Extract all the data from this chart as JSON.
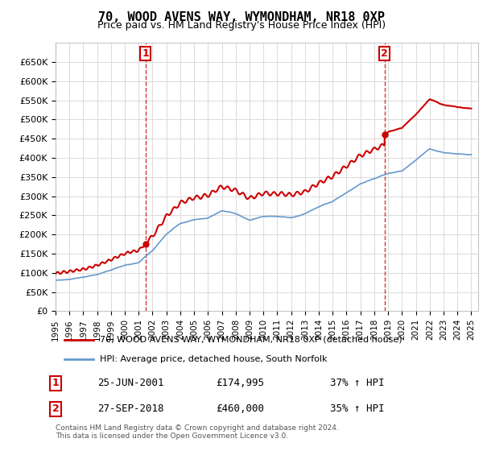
{
  "title": "70, WOOD AVENS WAY, WYMONDHAM, NR18 0XP",
  "subtitle": "Price paid vs. HM Land Registry's House Price Index (HPI)",
  "legend_line1": "70, WOOD AVENS WAY, WYMONDHAM, NR18 0XP (detached house)",
  "legend_line2": "HPI: Average price, detached house, South Norfolk",
  "annotation1_label": "1",
  "annotation1_date": "25-JUN-2001",
  "annotation1_price": "£174,995",
  "annotation1_hpi": "37% ↑ HPI",
  "annotation2_label": "2",
  "annotation2_date": "27-SEP-2018",
  "annotation2_price": "£460,000",
  "annotation2_hpi": "35% ↑ HPI",
  "footer": "Contains HM Land Registry data © Crown copyright and database right 2024.\nThis data is licensed under the Open Government Licence v3.0.",
  "sale1_x": 2001.48,
  "sale1_y": 174995,
  "sale2_x": 2018.74,
  "sale2_y": 460000,
  "price_line_color": "#cc0000",
  "hpi_line_color": "#6699cc",
  "vline_color": "#cc0000",
  "grid_color": "#dddddd",
  "ylim": [
    0,
    700000
  ],
  "xlim": [
    1995,
    2025.5
  ],
  "yticks": [
    0,
    50000,
    100000,
    150000,
    200000,
    250000,
    300000,
    350000,
    400000,
    450000,
    500000,
    550000,
    600000,
    650000
  ],
  "xticks": [
    1995,
    1996,
    1997,
    1998,
    1999,
    2000,
    2001,
    2002,
    2003,
    2004,
    2005,
    2006,
    2007,
    2008,
    2009,
    2010,
    2011,
    2012,
    2013,
    2014,
    2015,
    2016,
    2017,
    2018,
    2019,
    2020,
    2021,
    2022,
    2023,
    2024,
    2025
  ]
}
